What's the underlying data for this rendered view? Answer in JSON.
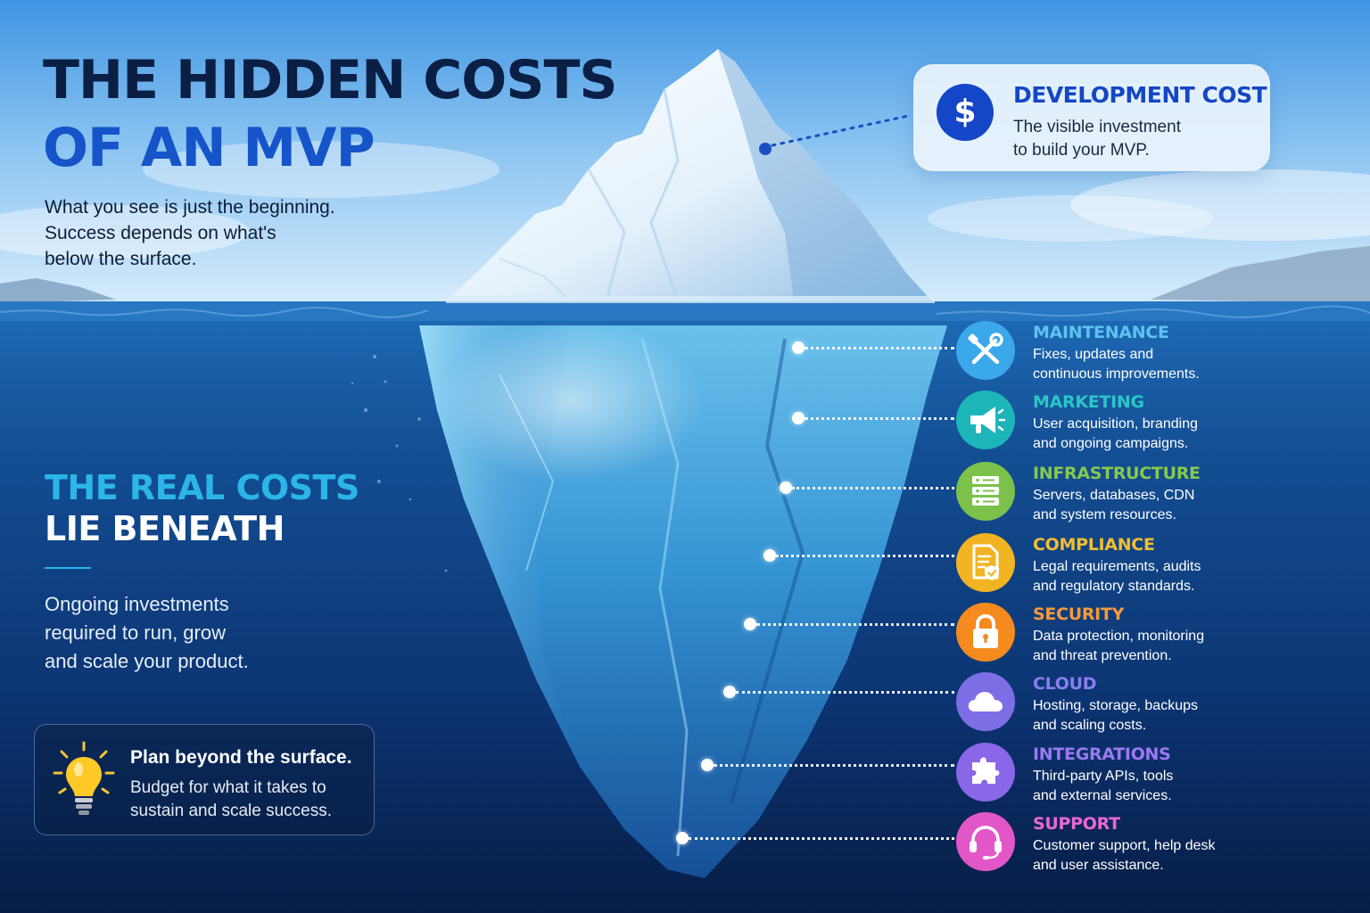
{
  "title": {
    "line1": "THE HIDDEN COSTS",
    "line2": "OF AN MVP"
  },
  "subtitle": {
    "line1": "What you see is just the beginning.",
    "line2": "Success depends on what's",
    "line3": "below the surface."
  },
  "visible_cost": {
    "icon": "dollar-icon",
    "symbol": "$",
    "title": "DEVELOPMENT COST",
    "desc_line1": "The visible investment",
    "desc_line2": "to build your MVP."
  },
  "beneath": {
    "heading_line1": "THE REAL COSTS",
    "heading_line2": "LIE BENEATH",
    "desc_line1": "Ongoing investments",
    "desc_line2": "required to run, grow",
    "desc_line3": "and scale your product."
  },
  "tip": {
    "icon": "lightbulb-icon",
    "title": "Plan beyond the surface.",
    "desc_line1": "Budget for what it takes to",
    "desc_line2": "sustain and scale success."
  },
  "hidden_costs": [
    {
      "title": "MAINTENANCE",
      "line1": "Fixes, updates and",
      "line2": "continuous improvements.",
      "icon": "tools-icon",
      "color": "#3aa8ea"
    },
    {
      "title": "MARKETING",
      "line1": "User acquisition, branding",
      "line2": "and ongoing campaigns.",
      "icon": "megaphone-icon",
      "color": "#1cb5b8"
    },
    {
      "title": "INFRASTRUCTURE",
      "line1": "Servers, databases, CDN",
      "line2": "and system resources.",
      "icon": "server-icon",
      "color": "#7cc24a"
    },
    {
      "title": "COMPLIANCE",
      "line1": "Legal requirements, audits",
      "line2": "and regulatory standards.",
      "icon": "document-shield-icon",
      "color": "#f2b423"
    },
    {
      "title": "SECURITY",
      "line1": "Data protection, monitoring",
      "line2": "and threat prevention.",
      "icon": "lock-icon",
      "color": "#f58a1f"
    },
    {
      "title": "CLOUD",
      "line1": "Hosting, storage, backups",
      "line2": "and scaling costs.",
      "icon": "cloud-icon",
      "color": "#7d6ee6"
    },
    {
      "title": "INTEGRATIONS",
      "line1": "Third-party APIs, tools",
      "line2": "and external services.",
      "icon": "puzzle-icon",
      "color": "#8a66e8"
    },
    {
      "title": "SUPPORT",
      "line1": "Customer support, help desk",
      "line2": "and user assistance.",
      "icon": "headset-icon",
      "color": "#e257c8"
    }
  ]
}
